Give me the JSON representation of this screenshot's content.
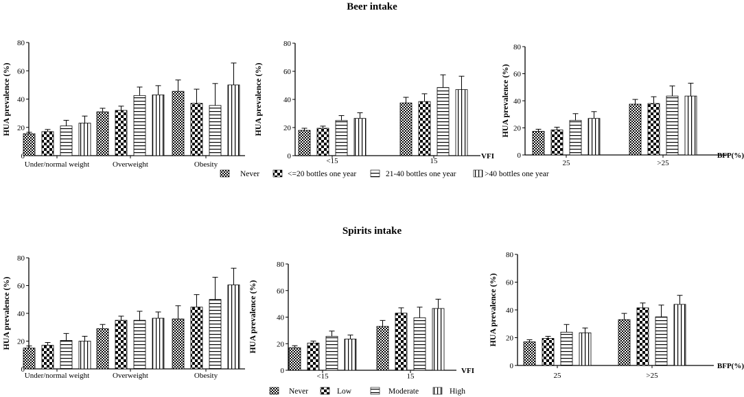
{
  "chart_data": [
    {
      "type": "bar",
      "section": "Beer intake",
      "title": "Beer intake",
      "xlabel": "",
      "ylabel": "HUA prevalence (%)",
      "ylim": [
        0,
        80
      ],
      "yticks": [
        0,
        20,
        40,
        60,
        80
      ],
      "categories": [
        "Under/normal weight",
        "Overweight",
        "Obesity"
      ],
      "series": [
        {
          "name": "Never",
          "values": [
            15.5,
            31,
            45.5
          ],
          "errors": [
            1,
            2.5,
            8
          ]
        },
        {
          "name": "<=20 bottles one year",
          "values": [
            17,
            32,
            37
          ],
          "errors": [
            1.5,
            3,
            10
          ]
        },
        {
          "name": "21-40 bottles one year",
          "values": [
            21,
            42.5,
            35.5
          ],
          "errors": [
            4,
            6,
            15.5
          ]
        },
        {
          "name": ">40 bottles one year",
          "values": [
            23,
            43,
            50
          ],
          "errors": [
            5,
            6.5,
            15.5
          ]
        }
      ]
    },
    {
      "type": "bar",
      "section": "Beer intake",
      "xlabel": "VFI",
      "ylabel": "HUA prevalence (%)",
      "ylim": [
        0,
        80
      ],
      "yticks": [
        0,
        20,
        40,
        60,
        80
      ],
      "categories": [
        "<15",
        "15"
      ],
      "series": [
        {
          "name": "Never",
          "values": [
            18,
            37.5
          ],
          "errors": [
            1.5,
            4
          ]
        },
        {
          "name": "<=20 bottles one year",
          "values": [
            19.5,
            38.5
          ],
          "errors": [
            1.5,
            5.5
          ]
        },
        {
          "name": "21-40 bottles one year",
          "values": [
            25,
            48.5
          ],
          "errors": [
            3.5,
            9
          ]
        },
        {
          "name": ">40 bottles one year",
          "values": [
            26.5,
            47
          ],
          "errors": [
            4,
            9.5
          ]
        }
      ]
    },
    {
      "type": "bar",
      "section": "Beer intake",
      "xlabel": "BFP(%)",
      "ylabel": "HUA prevalence (%)",
      "ylim": [
        0,
        80
      ],
      "yticks": [
        0,
        20,
        40,
        60,
        80
      ],
      "categories": [
        "25",
        ">25"
      ],
      "series": [
        {
          "name": "Never",
          "values": [
            17.5,
            37.5
          ],
          "errors": [
            1.5,
            3.5
          ]
        },
        {
          "name": "<=20 bottles one year",
          "values": [
            18.5,
            38
          ],
          "errors": [
            2,
            5
          ]
        },
        {
          "name": "21-40 bottles one year",
          "values": [
            25.5,
            43.5
          ],
          "errors": [
            5,
            7.5
          ]
        },
        {
          "name": ">40 bottles one year",
          "values": [
            27,
            43.5
          ],
          "errors": [
            5,
            9.5
          ]
        }
      ]
    },
    {
      "type": "bar",
      "section": "Spirits intake",
      "title": "Spirits intake",
      "xlabel": "",
      "ylabel": "HUA prevalence (%)",
      "ylim": [
        0,
        80
      ],
      "yticks": [
        0,
        20,
        40,
        60,
        80
      ],
      "categories": [
        "Under/normal weight",
        "Overweight",
        "Obesity"
      ],
      "series": [
        {
          "name": "Never",
          "values": [
            15,
            29,
            36
          ],
          "errors": [
            1.5,
            3,
            9.5
          ]
        },
        {
          "name": "Low",
          "values": [
            17,
            35,
            44.5
          ],
          "errors": [
            2,
            3,
            9
          ]
        },
        {
          "name": "Moderate",
          "values": [
            20.5,
            35,
            50
          ],
          "errors": [
            5,
            6.5,
            16
          ]
        },
        {
          "name": "High",
          "values": [
            20,
            36.5,
            60.5
          ],
          "errors": [
            3.5,
            4.5,
            12
          ]
        }
      ]
    },
    {
      "type": "bar",
      "section": "Spirits intake",
      "xlabel": "VFI",
      "ylabel": "HUA prevalence (%)",
      "ylim": [
        0,
        80
      ],
      "yticks": [
        0,
        20,
        40,
        60,
        80
      ],
      "categories": [
        "<15",
        "15"
      ],
      "series": [
        {
          "name": "Never",
          "values": [
            17,
            33
          ],
          "errors": [
            1.5,
            4.5
          ]
        },
        {
          "name": "Low",
          "values": [
            20.5,
            43
          ],
          "errors": [
            1.5,
            4
          ]
        },
        {
          "name": "Moderate",
          "values": [
            25.5,
            39.5
          ],
          "errors": [
            4,
            8
          ]
        },
        {
          "name": "High",
          "values": [
            23.5,
            46.5
          ],
          "errors": [
            3,
            7
          ]
        }
      ]
    },
    {
      "type": "bar",
      "section": "Spirits intake",
      "xlabel": "BFP(%)",
      "ylabel": "HUA prevalence (%)",
      "ylim": [
        0,
        80
      ],
      "yticks": [
        0,
        20,
        40,
        60,
        80
      ],
      "categories": [
        "25",
        ">25"
      ],
      "series": [
        {
          "name": "Never",
          "values": [
            17,
            33
          ],
          "errors": [
            1.5,
            4.5
          ]
        },
        {
          "name": "Low",
          "values": [
            19.5,
            41.5
          ],
          "errors": [
            1.5,
            3.5
          ]
        },
        {
          "name": "Moderate",
          "values": [
            24,
            35
          ],
          "errors": [
            5.5,
            8.5
          ]
        },
        {
          "name": "High",
          "values": [
            23.5,
            44
          ],
          "errors": [
            3.5,
            6.5
          ]
        }
      ]
    }
  ],
  "legends": {
    "beer": [
      "Never",
      "<=20 bottles one year",
      "21-40 bottles one year",
      ">40 bottles one year"
    ],
    "spirits": [
      "Never",
      "Low",
      "Moderate",
      "High"
    ]
  },
  "patterns": [
    "checker",
    "bigchecker",
    "horizontal",
    "vertical"
  ]
}
